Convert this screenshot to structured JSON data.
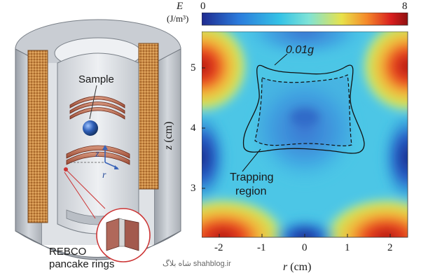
{
  "left_panel": {
    "sample_label": "Sample",
    "axis_z": "z",
    "axis_r": "r",
    "rebco_label_line1": "REBCO",
    "rebco_label_line2": "pancake rings"
  },
  "right_panel": {
    "colorbar": {
      "symbol": "E",
      "unit": "(J/m³)",
      "min_label": "0",
      "max_label": "8"
    },
    "annotation_contour": "0.01g",
    "annotation_region_line1": "Trapping",
    "annotation_region_line2": "region",
    "xlabel_var": "r",
    "xlabel_unit": "(cm)",
    "ylabel_var": "z",
    "ylabel_unit": "(cm)",
    "x_ticks": [
      "-2",
      "-1",
      "0",
      "1",
      "2"
    ],
    "y_ticks": [
      "5",
      "4",
      "3"
    ]
  },
  "watermark": "شاه بلاگ   shahblog.ir",
  "colors": {
    "colorbar_stops": [
      "#1f2a8f",
      "#2b7bdc",
      "#35c3e6",
      "#7fe3d6",
      "#e8e24a",
      "#f58a2a",
      "#d81e1e",
      "#8f1010"
    ]
  },
  "chart_data": {
    "type": "heatmap",
    "title": "",
    "xlabel": "r (cm)",
    "ylabel": "z (cm)",
    "xlim": [
      -2.4,
      2.4
    ],
    "ylim": [
      2.2,
      5.6
    ],
    "x_ticks": [
      -2,
      -1,
      0,
      1,
      2
    ],
    "y_ticks": [
      3,
      4,
      5
    ],
    "colorbar": {
      "label": "E (J/m³)",
      "min": 0,
      "max": 8
    },
    "annotations": [
      "0.01g",
      "Trapping region"
    ]
  }
}
